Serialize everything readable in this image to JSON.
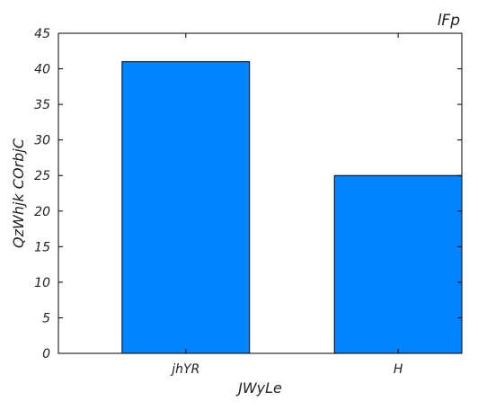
{
  "chart_data": {
    "type": "bar",
    "title": "lFp",
    "xlabel": "JWyLe",
    "ylabel": "QzWhjk COrbjC",
    "categories": [
      "jhYR",
      "H"
    ],
    "values": [
      41,
      25
    ],
    "ylim": [
      0,
      45
    ],
    "yticks": [
      0,
      5,
      10,
      15,
      20,
      25,
      30,
      35,
      40,
      45
    ],
    "bar_color": "#0084ff",
    "grid": false,
    "legend": "none"
  }
}
